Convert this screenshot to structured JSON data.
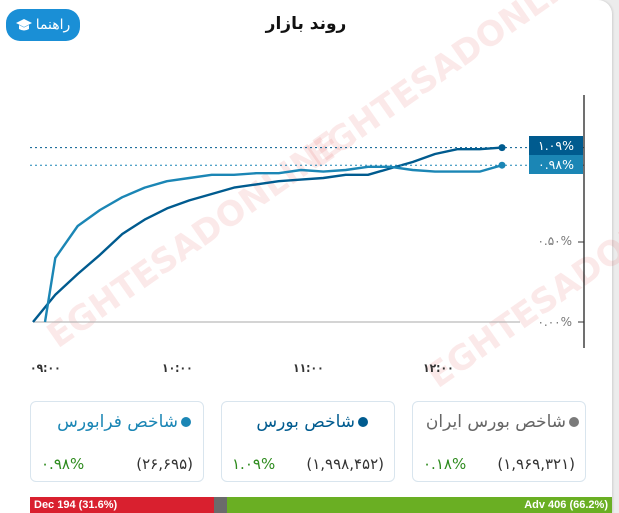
{
  "header": {
    "title": "روند بازار",
    "help_button": "راهنما"
  },
  "colors": {
    "main_index": "#005b8f",
    "otc_index": "#1b86b5",
    "iran_index": "#7a7a7a",
    "help_button": "#1a8fd6",
    "positive": "#2e8b1e",
    "decline": "#d9202f",
    "unchanged": "#6b6b6b",
    "advance": "#6aaf23"
  },
  "chart_data": {
    "type": "line",
    "title": "روند بازار",
    "xlabel": "",
    "ylabel": "",
    "x_ticks": [
      "۰۹:۰۰",
      "۱۰:۰۰",
      "۱۱:۰۰",
      "۱۲:۰۰"
    ],
    "y_ticks": [
      "۰.۰۰%",
      "۰.۵۰%"
    ],
    "ylim": [
      0,
      1.2
    ],
    "grid": false,
    "x": [
      "09:00",
      "09:10",
      "09:20",
      "09:30",
      "09:40",
      "09:50",
      "10:00",
      "10:10",
      "10:20",
      "10:30",
      "10:40",
      "10:50",
      "11:00",
      "11:10",
      "11:20",
      "11:30",
      "11:40",
      "11:50",
      "12:00",
      "12:10",
      "12:20",
      "12:30"
    ],
    "series": [
      {
        "name": "شاخص بورس",
        "color": "#005b8f",
        "last_label": "۱.۰۹%",
        "values": [
          0.0,
          0.17,
          0.3,
          0.42,
          0.55,
          0.64,
          0.71,
          0.76,
          0.8,
          0.84,
          0.86,
          0.88,
          0.89,
          0.9,
          0.92,
          0.92,
          0.96,
          1.0,
          1.05,
          1.08,
          1.08,
          1.09
        ]
      },
      {
        "name": "شاخص فرابورس",
        "color": "#1b86b5",
        "last_label": "۰.۹۸%",
        "values": [
          0.0,
          0.4,
          0.6,
          0.7,
          0.78,
          0.84,
          0.88,
          0.9,
          0.92,
          0.92,
          0.93,
          0.93,
          0.95,
          0.94,
          0.95,
          0.97,
          0.97,
          0.95,
          0.94,
          0.94,
          0.94,
          0.98
        ]
      }
    ],
    "legend_position": "bottom"
  },
  "indices": [
    {
      "name": "شاخص بورس ایران",
      "value": "(۱,۹۶۹,۳۲۱)",
      "change": "۰.۱۸%",
      "dot_color": "#7a7a7a",
      "name_color": "#666666"
    },
    {
      "name": "شاخص بورس",
      "value": "(۱,۹۹۸,۴۵۲)",
      "change": "۱.۰۹%",
      "dot_color": "#005b8f",
      "name_color": "#005b8f"
    },
    {
      "name": "شاخص فرابورس",
      "value": "(۲۶,۶۹۵)",
      "change": "۰.۹۸%",
      "dot_color": "#1b86b5",
      "name_color": "#1b86b5"
    }
  ],
  "breadth": {
    "decline_label": "Dec 194 (31.6%)",
    "decline_pct": 31.6,
    "unchanged_pct": 2.2,
    "advance_label": "Adv 406 (66.2%)",
    "advance_pct": 66.2
  }
}
